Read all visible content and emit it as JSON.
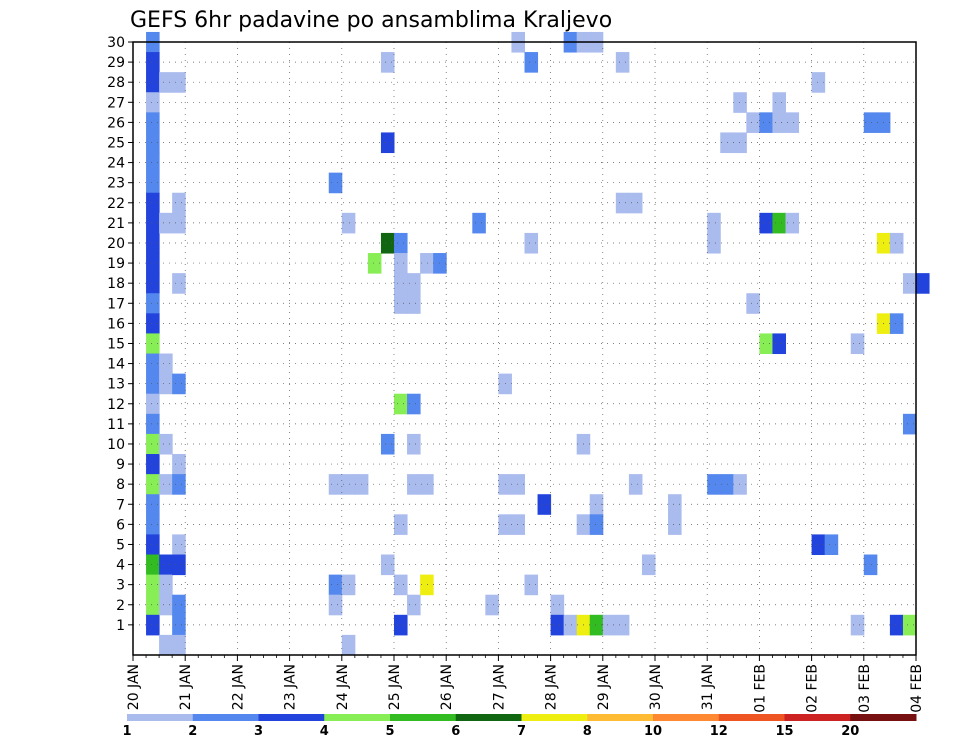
{
  "chart_data": {
    "type": "heatmap",
    "title": "GEFS 6hr padavine po ansamblima Kraljevo",
    "xlabel": "",
    "ylabel": "",
    "ylim": [
      0,
      30
    ],
    "x_ticks": [
      "20 JAN",
      "21 JAN",
      "22 JAN",
      "23 JAN",
      "24 JAN",
      "25 JAN",
      "26 JAN",
      "27 JAN",
      "28 JAN",
      "29 JAN",
      "30 JAN",
      "31 JAN",
      "01 FEB",
      "02 FEB",
      "03 FEB",
      "04 FEB"
    ],
    "y_ticks": [
      1,
      2,
      3,
      4,
      5,
      6,
      7,
      8,
      9,
      10,
      11,
      12,
      13,
      14,
      15,
      16,
      17,
      18,
      19,
      20,
      21,
      22,
      23,
      24,
      25,
      26,
      27,
      28,
      29,
      30
    ],
    "grid": true,
    "time_step_hours": 6,
    "x_start": "20 JAN",
    "x_end": "04 FEB",
    "legend": {
      "placement": "bottom",
      "labels": [
        "1",
        "2",
        "3",
        "4",
        "5",
        "6",
        "7",
        "8",
        "10",
        "12",
        "15",
        "20"
      ],
      "colors": [
        "#aabbee",
        "#5588ee",
        "#2244dd",
        "#88ee55",
        "#33bb22",
        "#116611",
        "#eeee11",
        "#ffbb33",
        "#ff8833",
        "#ee5522",
        "#cc2222",
        "#771111"
      ]
    },
    "cells": [
      {
        "t": "20 JAN 06",
        "m": 30,
        "c": 1
      },
      {
        "t": "20 JAN 06",
        "m": 29,
        "c": 2
      },
      {
        "t": "20 JAN 06",
        "m": 28,
        "c": 2
      },
      {
        "t": "20 JAN 06",
        "m": 27,
        "c": 0
      },
      {
        "t": "20 JAN 06",
        "m": 26,
        "c": 1
      },
      {
        "t": "20 JAN 06",
        "m": 25,
        "c": 1
      },
      {
        "t": "20 JAN 06",
        "m": 24,
        "c": 1
      },
      {
        "t": "20 JAN 06",
        "m": 23,
        "c": 1
      },
      {
        "t": "20 JAN 06",
        "m": 22,
        "c": 2
      },
      {
        "t": "20 JAN 06",
        "m": 21,
        "c": 2
      },
      {
        "t": "20 JAN 06",
        "m": 20,
        "c": 2
      },
      {
        "t": "20 JAN 06",
        "m": 19,
        "c": 2
      },
      {
        "t": "20 JAN 06",
        "m": 18,
        "c": 2
      },
      {
        "t": "20 JAN 06",
        "m": 17,
        "c": 1
      },
      {
        "t": "20 JAN 06",
        "m": 16,
        "c": 2
      },
      {
        "t": "20 JAN 06",
        "m": 15,
        "c": 3
      },
      {
        "t": "20 JAN 06",
        "m": 14,
        "c": 1
      },
      {
        "t": "20 JAN 06",
        "m": 13,
        "c": 1
      },
      {
        "t": "20 JAN 06",
        "m": 12,
        "c": 0
      },
      {
        "t": "20 JAN 06",
        "m": 11,
        "c": 1
      },
      {
        "t": "20 JAN 06",
        "m": 10,
        "c": 3
      },
      {
        "t": "20 JAN 06",
        "m": 9,
        "c": 2
      },
      {
        "t": "20 JAN 06",
        "m": 8,
        "c": 3
      },
      {
        "t": "20 JAN 06",
        "m": 7,
        "c": 1
      },
      {
        "t": "20 JAN 06",
        "m": 6,
        "c": 1
      },
      {
        "t": "20 JAN 06",
        "m": 5,
        "c": 2
      },
      {
        "t": "20 JAN 06",
        "m": 4,
        "c": 4
      },
      {
        "t": "20 JAN 06",
        "m": 3,
        "c": 3
      },
      {
        "t": "20 JAN 06",
        "m": 2,
        "c": 3
      },
      {
        "t": "20 JAN 06",
        "m": 1,
        "c": 2
      },
      {
        "t": "20 JAN 12",
        "m": 28,
        "c": 0
      },
      {
        "t": "20 JAN 12",
        "m": 21,
        "c": 0
      },
      {
        "t": "20 JAN 12",
        "m": 14,
        "c": 0
      },
      {
        "t": "20 JAN 12",
        "m": 13,
        "c": 0
      },
      {
        "t": "20 JAN 12",
        "m": 10,
        "c": 0
      },
      {
        "t": "20 JAN 12",
        "m": 8,
        "c": 0
      },
      {
        "t": "20 JAN 12",
        "m": 4,
        "c": 2
      },
      {
        "t": "20 JAN 12",
        "m": 3,
        "c": 0
      },
      {
        "t": "20 JAN 12",
        "m": 2,
        "c": 0
      },
      {
        "t": "20 JAN 12",
        "m": 0,
        "c": 0
      },
      {
        "t": "20 JAN 18",
        "m": 28,
        "c": 0
      },
      {
        "t": "20 JAN 18",
        "m": 22,
        "c": 0
      },
      {
        "t": "20 JAN 18",
        "m": 21,
        "c": 0
      },
      {
        "t": "20 JAN 18",
        "m": 18,
        "c": 0
      },
      {
        "t": "20 JAN 18",
        "m": 13,
        "c": 1
      },
      {
        "t": "20 JAN 18",
        "m": 9,
        "c": 0
      },
      {
        "t": "20 JAN 18",
        "m": 8,
        "c": 1
      },
      {
        "t": "20 JAN 18",
        "m": 5,
        "c": 0
      },
      {
        "t": "20 JAN 18",
        "m": 4,
        "c": 2
      },
      {
        "t": "20 JAN 18",
        "m": 2,
        "c": 1
      },
      {
        "t": "20 JAN 18",
        "m": 1,
        "c": 1
      },
      {
        "t": "20 JAN 18",
        "m": 0,
        "c": 0
      },
      {
        "t": "23 JAN 18",
        "m": 23,
        "c": 1
      },
      {
        "t": "23 JAN 18",
        "m": 8,
        "c": 0
      },
      {
        "t": "23 JAN 18",
        "m": 3,
        "c": 1
      },
      {
        "t": "23 JAN 18",
        "m": 2,
        "c": 0
      },
      {
        "t": "24 JAN 00",
        "m": 8,
        "c": 0
      },
      {
        "t": "24 JAN 00",
        "m": 3,
        "c": 0
      },
      {
        "t": "24 JAN 00",
        "m": 0,
        "c": 0
      },
      {
        "t": "24 JAN 00",
        "m": 21,
        "c": 0
      },
      {
        "t": "24 JAN 06",
        "m": 8,
        "c": 0
      },
      {
        "t": "24 JAN 12",
        "m": 19,
        "c": 3
      },
      {
        "t": "24 JAN 18",
        "m": 29,
        "c": 0
      },
      {
        "t": "24 JAN 18",
        "m": 25,
        "c": 2
      },
      {
        "t": "24 JAN 18",
        "m": 20,
        "c": 5
      },
      {
        "t": "24 JAN 18",
        "m": 10,
        "c": 1
      },
      {
        "t": "24 JAN 18",
        "m": 4,
        "c": 0
      },
      {
        "t": "25 JAN 00",
        "m": 20,
        "c": 1
      },
      {
        "t": "25 JAN 00",
        "m": 19,
        "c": 0
      },
      {
        "t": "25 JAN 00",
        "m": 18,
        "c": 0
      },
      {
        "t": "25 JAN 00",
        "m": 17,
        "c": 0
      },
      {
        "t": "25 JAN 00",
        "m": 12,
        "c": 3
      },
      {
        "t": "25 JAN 00",
        "m": 6,
        "c": 0
      },
      {
        "t": "25 JAN 00",
        "m": 3,
        "c": 0
      },
      {
        "t": "25 JAN 00",
        "m": 1,
        "c": 2
      },
      {
        "t": "25 JAN 06",
        "m": 18,
        "c": 0
      },
      {
        "t": "25 JAN 06",
        "m": 17,
        "c": 0
      },
      {
        "t": "25 JAN 06",
        "m": 12,
        "c": 1
      },
      {
        "t": "25 JAN 06",
        "m": 10,
        "c": 0
      },
      {
        "t": "25 JAN 06",
        "m": 8,
        "c": 0
      },
      {
        "t": "25 JAN 06",
        "m": 2,
        "c": 0
      },
      {
        "t": "25 JAN 12",
        "m": 19,
        "c": 0
      },
      {
        "t": "25 JAN 12",
        "m": 8,
        "c": 0
      },
      {
        "t": "25 JAN 12",
        "m": 3,
        "c": 6
      },
      {
        "t": "25 JAN 18",
        "m": 19,
        "c": 1
      },
      {
        "t": "26 JAN 12",
        "m": 21,
        "c": 1
      },
      {
        "t": "26 JAN 18",
        "m": 2,
        "c": 0
      },
      {
        "t": "27 JAN 00",
        "m": 13,
        "c": 0
      },
      {
        "t": "27 JAN 00",
        "m": 8,
        "c": 0
      },
      {
        "t": "27 JAN 00",
        "m": 6,
        "c": 0
      },
      {
        "t": "27 JAN 06",
        "m": 30,
        "c": 0
      },
      {
        "t": "27 JAN 06",
        "m": 8,
        "c": 0
      },
      {
        "t": "27 JAN 06",
        "m": 6,
        "c": 0
      },
      {
        "t": "27 JAN 12",
        "m": 29,
        "c": 1
      },
      {
        "t": "27 JAN 12",
        "m": 20,
        "c": 0
      },
      {
        "t": "27 JAN 12",
        "m": 3,
        "c": 0
      },
      {
        "t": "27 JAN 18",
        "m": 7,
        "c": 2
      },
      {
        "t": "28 JAN 00",
        "m": 2,
        "c": 0
      },
      {
        "t": "28 JAN 00",
        "m": 1,
        "c": 2
      },
      {
        "t": "28 JAN 06",
        "m": 30,
        "c": 1
      },
      {
        "t": "28 JAN 06",
        "m": 1,
        "c": 0
      },
      {
        "t": "28 JAN 12",
        "m": 30,
        "c": 0
      },
      {
        "t": "28 JAN 12",
        "m": 10,
        "c": 0
      },
      {
        "t": "28 JAN 12",
        "m": 6,
        "c": 0
      },
      {
        "t": "28 JAN 12",
        "m": 1,
        "c": 6
      },
      {
        "t": "28 JAN 18",
        "m": 30,
        "c": 0
      },
      {
        "t": "28 JAN 18",
        "m": 7,
        "c": 0
      },
      {
        "t": "28 JAN 18",
        "m": 6,
        "c": 1
      },
      {
        "t": "28 JAN 18",
        "m": 1,
        "c": 4
      },
      {
        "t": "29 JAN 00",
        "m": 1,
        "c": 0
      },
      {
        "t": "29 JAN 06",
        "m": 29,
        "c": 0
      },
      {
        "t": "29 JAN 06",
        "m": 22,
        "c": 0
      },
      {
        "t": "29 JAN 06",
        "m": 1,
        "c": 0
      },
      {
        "t": "29 JAN 12",
        "m": 22,
        "c": 0
      },
      {
        "t": "29 JAN 12",
        "m": 8,
        "c": 0
      },
      {
        "t": "29 JAN 18",
        "m": 4,
        "c": 0
      },
      {
        "t": "30 JAN 06",
        "m": 7,
        "c": 0
      },
      {
        "t": "30 JAN 06",
        "m": 6,
        "c": 0
      },
      {
        "t": "31 JAN 00",
        "m": 21,
        "c": 0
      },
      {
        "t": "31 JAN 00",
        "m": 20,
        "c": 0
      },
      {
        "t": "31 JAN 00",
        "m": 8,
        "c": 1
      },
      {
        "t": "31 JAN 06",
        "m": 25,
        "c": 0
      },
      {
        "t": "31 JAN 06",
        "m": 8,
        "c": 1
      },
      {
        "t": "31 JAN 12",
        "m": 27,
        "c": 0
      },
      {
        "t": "31 JAN 12",
        "m": 25,
        "c": 0
      },
      {
        "t": "31 JAN 12",
        "m": 8,
        "c": 0
      },
      {
        "t": "31 JAN 18",
        "m": 26,
        "c": 0
      },
      {
        "t": "31 JAN 18",
        "m": 17,
        "c": 0
      },
      {
        "t": "01 FEB 00",
        "m": 26,
        "c": 1
      },
      {
        "t": "01 FEB 00",
        "m": 15,
        "c": 3
      },
      {
        "t": "01 FEB 00",
        "m": 21,
        "c": 2
      },
      {
        "t": "01 FEB 06",
        "m": 27,
        "c": 0
      },
      {
        "t": "01 FEB 06",
        "m": 26,
        "c": 0
      },
      {
        "t": "01 FEB 06",
        "m": 21,
        "c": 4
      },
      {
        "t": "01 FEB 06",
        "m": 15,
        "c": 2
      },
      {
        "t": "01 FEB 12",
        "m": 26,
        "c": 0
      },
      {
        "t": "01 FEB 12",
        "m": 21,
        "c": 0
      },
      {
        "t": "02 FEB 00",
        "m": 28,
        "c": 0
      },
      {
        "t": "02 FEB 00",
        "m": 5,
        "c": 2
      },
      {
        "t": "02 FEB 06",
        "m": 5,
        "c": 1
      },
      {
        "t": "02 FEB 18",
        "m": 15,
        "c": 0
      },
      {
        "t": "02 FEB 18",
        "m": 1,
        "c": 0
      },
      {
        "t": "03 FEB 00",
        "m": 26,
        "c": 1
      },
      {
        "t": "03 FEB 00",
        "m": 4,
        "c": 1
      },
      {
        "t": "03 FEB 06",
        "m": 26,
        "c": 1
      },
      {
        "t": "03 FEB 06",
        "m": 20,
        "c": 6
      },
      {
        "t": "03 FEB 06",
        "m": 16,
        "c": 6
      },
      {
        "t": "03 FEB 12",
        "m": 20,
        "c": 0
      },
      {
        "t": "03 FEB 12",
        "m": 16,
        "c": 1
      },
      {
        "t": "03 FEB 12",
        "m": 1,
        "c": 2
      },
      {
        "t": "03 FEB 18",
        "m": 18,
        "c": 0
      },
      {
        "t": "03 FEB 18",
        "m": 11,
        "c": 1
      },
      {
        "t": "03 FEB 18",
        "m": 1,
        "c": 3
      },
      {
        "t": "04 FEB 00",
        "m": 18,
        "c": 2
      }
    ]
  }
}
